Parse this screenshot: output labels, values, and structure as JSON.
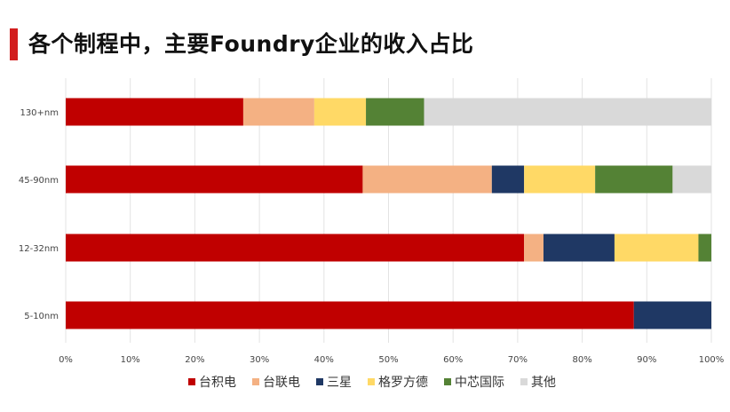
{
  "page": {
    "title": "各个制程中，主要Foundry企业的收入占比"
  },
  "chart_data": {
    "type": "bar",
    "orientation": "horizontal",
    "stacked": true,
    "categories": [
      "130+nm",
      "45-90nm",
      "12-32nm",
      "5-10nm"
    ],
    "series": [
      {
        "name": "台积电",
        "color": "#c00000",
        "values": [
          27.5,
          46,
          71,
          88
        ]
      },
      {
        "name": "台联电",
        "color": "#f4b183",
        "values": [
          11,
          20,
          3,
          0
        ]
      },
      {
        "name": "三星",
        "color": "#1f3864",
        "values": [
          0,
          5,
          11,
          12
        ]
      },
      {
        "name": "格罗方德",
        "color": "#ffd966",
        "values": [
          8,
          11,
          13,
          0
        ]
      },
      {
        "name": "中芯国际",
        "color": "#548235",
        "values": [
          9,
          12,
          2,
          0
        ]
      },
      {
        "name": "其他",
        "color": "#d9d9d9",
        "values": [
          44.5,
          6,
          0,
          0
        ]
      }
    ],
    "xlim": [
      0,
      100
    ],
    "x_ticks": [
      "0%",
      "10%",
      "20%",
      "30%",
      "40%",
      "50%",
      "60%",
      "70%",
      "80%",
      "90%",
      "100%"
    ],
    "grid": "vertical",
    "legend_position": "bottom"
  }
}
